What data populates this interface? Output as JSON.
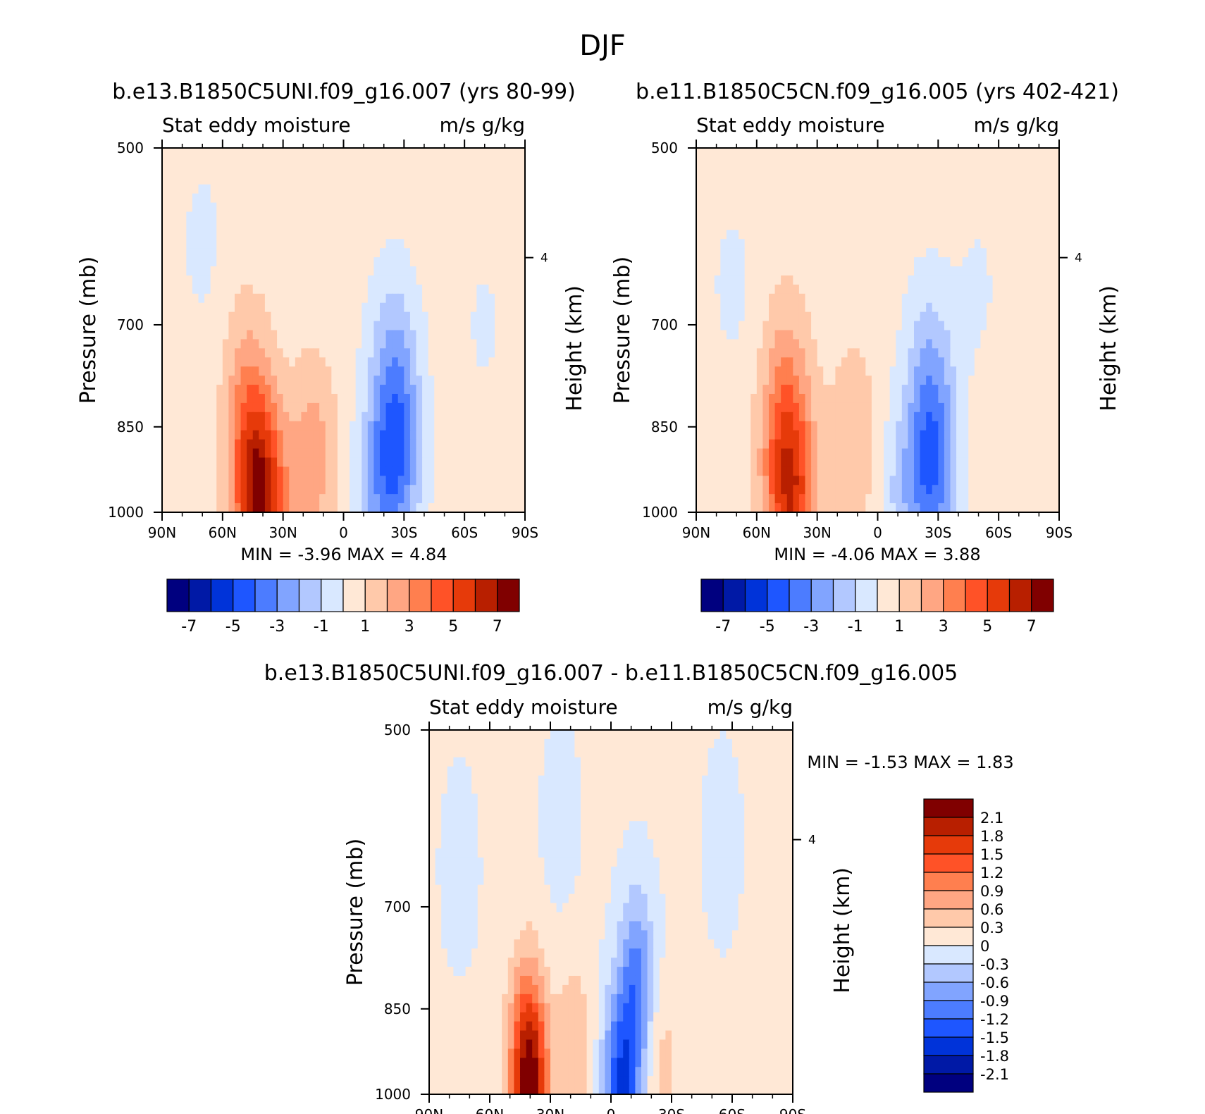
{
  "figure": {
    "title": "DJF"
  },
  "colors": {
    "main_scale": [
      "#00007f",
      "#0019a6",
      "#0033d9",
      "#1e56ff",
      "#4c7cff",
      "#81a4ff",
      "#b2c8ff",
      "#d9e8ff",
      "#ffe8d6",
      "#ffc9aa",
      "#ffa683",
      "#ff7f4f",
      "#ff5227",
      "#e63a0a",
      "#b81f00",
      "#800000"
    ],
    "diff_scale": [
      "#00007f",
      "#0019a6",
      "#0033d9",
      "#1e56ff",
      "#4c7cff",
      "#81a4ff",
      "#b2c8ff",
      "#d9e8ff",
      "#ffe8d6",
      "#ffc9aa",
      "#ffa683",
      "#ff7f4f",
      "#ff5227",
      "#e63a0a",
      "#b81f00",
      "#800000"
    ]
  },
  "chart_data": [
    {
      "type": "heatmap",
      "title": "b.e13.B1850C5UNI.f09_g16.007 (yrs 80-99)",
      "subtitle_left": "Stat eddy moisture",
      "subtitle_right": "m/s g/kg",
      "xlabel": "",
      "ylabel": "Pressure (mb)",
      "ylabel_right": "Height (km)",
      "x_ticks": [
        "90N",
        "60N",
        "30N",
        "0",
        "30S",
        "60S",
        "90S"
      ],
      "x_values": [
        90,
        60,
        30,
        0,
        -30,
        -60,
        -90
      ],
      "y_ticks": [
        "500",
        "700",
        "850",
        "1000"
      ],
      "y_values": [
        500,
        700,
        850,
        1000
      ],
      "y_right_ticks": [
        "4"
      ],
      "y_right_values": [
        4
      ],
      "ylim": [
        500,
        1000
      ],
      "xlim": [
        90,
        -90
      ],
      "stats_text": "MIN =   -3.96   MAX =    4.84",
      "min": -3.96,
      "max": 4.84,
      "colorbar_labels": [
        "-7",
        "-5",
        "-3",
        "-1",
        "1",
        "3",
        "5",
        "7"
      ],
      "colorbar_levels": [
        -7,
        -6,
        -5,
        -4,
        -3,
        -2,
        -1,
        0,
        1,
        2,
        3,
        4,
        5,
        6,
        7
      ],
      "features": [
        {
          "lat": 40,
          "p": 990,
          "value": 4.5
        },
        {
          "lat": 45,
          "p": 920,
          "value": 3.0
        },
        {
          "lat": 48,
          "p": 780,
          "value": 1.5
        },
        {
          "lat": 15,
          "p": 900,
          "value": 2.2
        },
        {
          "lat": -26,
          "p": 900,
          "value": -3.9
        },
        {
          "lat": -25,
          "p": 750,
          "value": -2.0
        },
        {
          "lat": -15,
          "p": 980,
          "value": -1.5
        },
        {
          "lat": 70,
          "p": 600,
          "value": -0.6
        },
        {
          "lat": -70,
          "p": 700,
          "value": -0.5
        }
      ]
    },
    {
      "type": "heatmap",
      "title": "b.e11.B1850C5CN.f09_g16.005 (yrs 402-421)",
      "subtitle_left": "Stat eddy moisture",
      "subtitle_right": "m/s g/kg",
      "xlabel": "",
      "ylabel": "Pressure (mb)",
      "ylabel_right": "Height (km)",
      "x_ticks": [
        "90N",
        "60N",
        "30N",
        "0",
        "30S",
        "60S",
        "90S"
      ],
      "x_values": [
        90,
        60,
        30,
        0,
        -30,
        -60,
        -90
      ],
      "y_ticks": [
        "500",
        "700",
        "850",
        "1000"
      ],
      "y_values": [
        500,
        700,
        850,
        1000
      ],
      "y_right_ticks": [
        "4"
      ],
      "y_right_values": [
        4
      ],
      "ylim": [
        500,
        1000
      ],
      "xlim": [
        90,
        -90
      ],
      "stats_text": "MIN =   -4.06   MAX =    3.88",
      "min": -4.06,
      "max": 3.88,
      "colorbar_labels": [
        "-7",
        "-5",
        "-3",
        "-1",
        "1",
        "3",
        "5",
        "7"
      ],
      "colorbar_levels": [
        -7,
        -6,
        -5,
        -4,
        -3,
        -2,
        -1,
        0,
        1,
        2,
        3,
        4,
        5,
        6,
        7
      ],
      "features": [
        {
          "lat": 42,
          "p": 980,
          "value": 3.8
        },
        {
          "lat": 47,
          "p": 900,
          "value": 2.5
        },
        {
          "lat": 45,
          "p": 760,
          "value": 1.4
        },
        {
          "lat": 12,
          "p": 880,
          "value": 1.6
        },
        {
          "lat": -27,
          "p": 920,
          "value": -4.0
        },
        {
          "lat": -26,
          "p": 760,
          "value": -1.8
        },
        {
          "lat": -12,
          "p": 970,
          "value": -1.4
        },
        {
          "lat": 72,
          "p": 650,
          "value": -0.6
        },
        {
          "lat": -50,
          "p": 650,
          "value": -0.5
        }
      ]
    },
    {
      "type": "heatmap",
      "title": "b.e13.B1850C5UNI.f09_g16.007 - b.e11.B1850C5CN.f09_g16.005",
      "subtitle_left": "Stat eddy moisture",
      "subtitle_right": "m/s g/kg",
      "xlabel": "",
      "ylabel": "Pressure (mb)",
      "ylabel_right": "Height (km)",
      "x_ticks": [
        "90N",
        "60N",
        "30N",
        "0",
        "30S",
        "60S",
        "90S"
      ],
      "x_values": [
        90,
        60,
        30,
        0,
        -30,
        -60,
        -90
      ],
      "y_ticks": [
        "500",
        "700",
        "850",
        "1000"
      ],
      "y_values": [
        500,
        700,
        850,
        1000
      ],
      "y_right_ticks": [
        "4"
      ],
      "y_right_values": [
        4
      ],
      "ylim": [
        500,
        1000
      ],
      "xlim": [
        90,
        -90
      ],
      "stats_text": "MIN =   -1.53   MAX =    1.83",
      "min": -1.53,
      "max": 1.83,
      "colorbar_labels": [
        "2.1",
        "1.8",
        "1.5",
        "1.2",
        "0.9",
        "0.6",
        "0.3",
        "0",
        "-0.3",
        "-0.6",
        "-0.9",
        "-1.2",
        "-1.5",
        "-1.8",
        "-2.1"
      ],
      "colorbar_levels": [
        2.1,
        1.8,
        1.5,
        1.2,
        0.9,
        0.6,
        0.3,
        0,
        -0.3,
        -0.6,
        -0.9,
        -1.2,
        -1.5,
        -1.8,
        -2.1
      ],
      "features": [
        {
          "lat": 40,
          "p": 990,
          "value": 1.8
        },
        {
          "lat": 42,
          "p": 900,
          "value": 0.7
        },
        {
          "lat": 18,
          "p": 920,
          "value": 0.5
        },
        {
          "lat": -5,
          "p": 990,
          "value": -1.5
        },
        {
          "lat": -13,
          "p": 810,
          "value": -1.0
        },
        {
          "lat": -25,
          "p": 960,
          "value": 0.4
        },
        {
          "lat": 75,
          "p": 650,
          "value": -0.2
        },
        {
          "lat": 25,
          "p": 600,
          "value": -0.2
        },
        {
          "lat": -55,
          "p": 620,
          "value": -0.2
        }
      ]
    }
  ]
}
